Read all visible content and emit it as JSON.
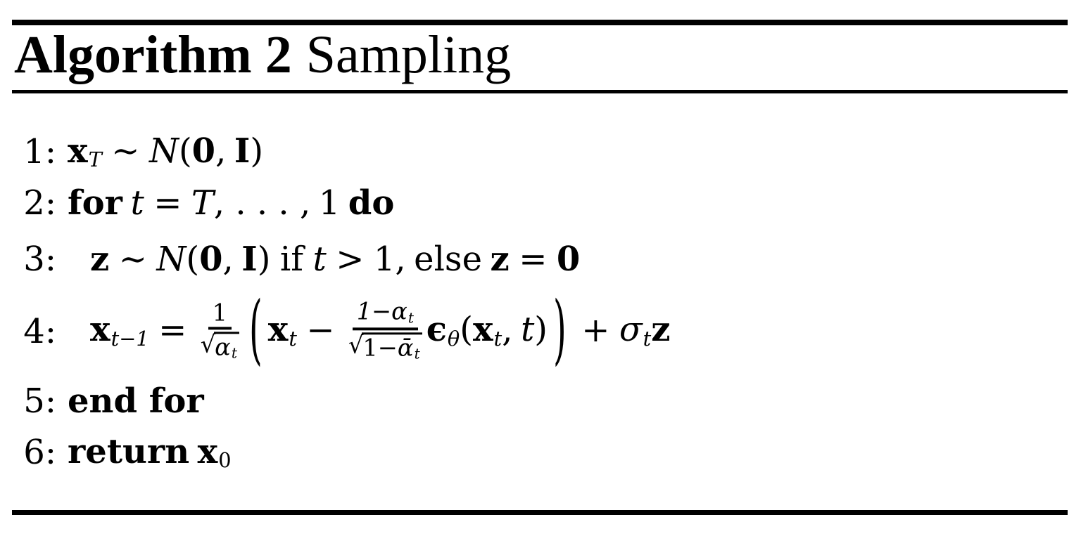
{
  "colors": {
    "ink": "#000000",
    "paper": "#ffffff"
  },
  "header": {
    "label_bold": "Algorithm 2",
    "label_rest": "Sampling"
  },
  "l1": {
    "num": "1:",
    "x": "x",
    "xsub": "T",
    "sim": "∼",
    "N": "N",
    "lp": "(",
    "zero": "0",
    "comma": ",",
    "I": "I",
    "rp": ")"
  },
  "l2": {
    "num": "2:",
    "kw_for": "for",
    "t": "t",
    "eq": "=",
    "T": "T",
    "dots": ", . . . ,",
    "one": "1",
    "kw_do": "do"
  },
  "l3": {
    "num": "3:",
    "z": "z",
    "sim": "∼",
    "N": "N",
    "lp": "(",
    "zero": "0",
    "comma": ",",
    "I": "I",
    "rp": ")",
    "kw_if": "if",
    "t": "t",
    "gt": ">",
    "one": "1,",
    "kw_else": "else",
    "z2": "z",
    "eq": "=",
    "zero2": "0"
  },
  "l4": {
    "num": "4:",
    "x": "x",
    "xsub": "t−1",
    "eq": "=",
    "f1num": "1",
    "rad1": "√",
    "f1a": "α",
    "f1sub": "t",
    "bigl": "(",
    "x2": "x",
    "x2sub": "t",
    "minus": "−",
    "f2n1": "1−α",
    "f2nsub": "t",
    "rad2": "√",
    "f2d1": "1−",
    "f2dbar": "ᾱ",
    "f2dsub": "t",
    "eps": "ϵ",
    "epssub": "θ",
    "lp": "(",
    "x3": "x",
    "x3sub": "t",
    "comma": ",",
    "t": "t",
    "rp": ")",
    "bigr": ")",
    "plus": "+",
    "sigma": "σ",
    "sigsub": "t",
    "z": "z"
  },
  "l5": {
    "num": "5:",
    "kw": "end for"
  },
  "l6": {
    "num": "6:",
    "kw": "return",
    "x": "x",
    "xsub": "0"
  }
}
